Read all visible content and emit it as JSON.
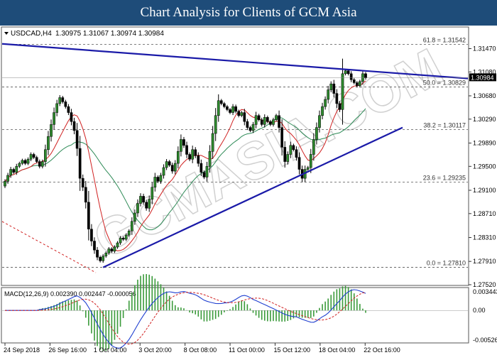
{
  "banner_title": "Chart Analysis for Clients of GCM Asia",
  "watermark": "GCMASIA.COM",
  "chart_data": {
    "type": "candlestick",
    "symbol_label": "USDCAD,H4",
    "ohlc_values": "1.30975 1.31067 1.30974 1.30984",
    "last_price": "1.30984",
    "ylim": [
      1.2752,
      1.3182
    ],
    "price_ticks": [
      "1.31470",
      "1.31080",
      "1.30680",
      "1.30290",
      "1.29890",
      "1.29500",
      "1.29100",
      "1.28710",
      "1.28310",
      "1.27910",
      "1.27520"
    ],
    "x_ticks": [
      "24 Sep 2018",
      "26 Sep 16:00",
      "1 Oct 04:00",
      "3 Oct 20:00",
      "8 Oct 08:00",
      "11 Oct 00:00",
      "15 Oct 12:00",
      "18 Oct 04:00",
      "22 Oct 16:00"
    ],
    "fibonacci": [
      {
        "label": "61.8 = 1.31542",
        "value": 1.31542
      },
      {
        "label": "50.0 = 1.30829",
        "value": 1.30829
      },
      {
        "label": "38.2 = 1.30117",
        "value": 1.30117
      },
      {
        "label": "23.6 = 1.29235",
        "value": 1.29235
      },
      {
        "label": "0.0 = 1.27810",
        "value": 1.2781
      }
    ],
    "trendlines": [
      {
        "name": "resistance",
        "from": [
          0,
          1.3155
        ],
        "to": [
          159,
          1.3097
        ],
        "color": "#1a1aa8"
      },
      {
        "name": "support",
        "from": [
          34,
          1.2781
        ],
        "to": [
          139,
          1.3015
        ],
        "color": "#1a1aa8"
      }
    ],
    "close": [
      1.2925,
      1.2935,
      1.2945,
      1.294,
      1.295,
      1.2955,
      1.296,
      1.2955,
      1.2962,
      1.297,
      1.2965,
      1.2958,
      1.295,
      1.2958,
      1.2978,
      1.3,
      1.302,
      1.304,
      1.3055,
      1.3065,
      1.3058,
      1.305,
      1.304,
      1.3025,
      1.301,
      1.298,
      1.293,
      1.2915,
      1.289,
      1.2845,
      1.2825,
      1.281,
      1.2798,
      1.2792,
      1.28,
      1.2805,
      1.2812,
      1.2808,
      1.2815,
      1.2822,
      1.283,
      1.2828,
      1.2835,
      1.2842,
      1.2858,
      1.2872,
      1.2888,
      1.29,
      1.289,
      1.288,
      1.2895,
      1.2915,
      1.2932,
      1.2925,
      1.2935,
      1.2948,
      1.2958,
      1.2952,
      1.2942,
      1.2955,
      1.2975,
      1.2995,
      1.2985,
      1.297,
      1.2962,
      1.2978,
      1.2968,
      1.2955,
      1.294,
      1.2932,
      1.295,
      1.2975,
      1.3005,
      1.3035,
      1.306,
      1.3055,
      1.305,
      1.3045,
      1.304,
      1.305,
      1.3042,
      1.3035,
      1.304,
      1.3025,
      1.3015,
      1.301,
      1.302,
      1.3035,
      1.3028,
      1.302,
      1.3032,
      1.3025,
      1.302,
      1.3028,
      1.3035,
      1.3015,
      1.2982,
      1.2958,
      1.297,
      1.2985,
      1.2978,
      1.2965,
      1.2945,
      1.293,
      1.2945,
      1.2948,
      1.297,
      1.2995,
      1.3015,
      1.3035,
      1.305,
      1.3062,
      1.3078,
      1.3088,
      1.3072,
      1.3055,
      1.3045,
      1.3105,
      1.311,
      1.3105,
      1.3095,
      1.309,
      1.3085,
      1.3092,
      1.3105,
      1.3098
    ],
    "ma_red_label": "red moving average",
    "ma_green_label": "green moving average",
    "macd": {
      "label": "MACD(12,26,9) 0.002390 0.002447 -0.000056",
      "ticks": [
        "0.003443",
        "0.00",
        "-0.005268"
      ],
      "ylim": [
        -0.005268,
        0.003443
      ]
    }
  }
}
